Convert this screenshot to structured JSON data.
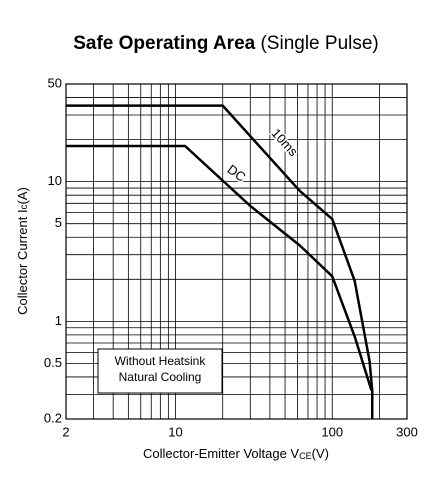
{
  "chart_data": {
    "type": "line",
    "title": "Safe Operating Area",
    "subtitle": "(Single Pulse)",
    "x_label": {
      "text": "Collector-Emitter Voltage V",
      "sub": "CE",
      "suffix": "(V)"
    },
    "y_label": {
      "text": "Collector Current I",
      "sub": "c",
      "suffix": "(A)"
    },
    "annotation": [
      "Without Heatsink",
      "Natural Cooling"
    ],
    "x_scale": "log",
    "y_scale": "log",
    "grid": true,
    "xlim": [
      2,
      300
    ],
    "ylim": [
      0.2,
      50
    ],
    "xticks": [
      2,
      10,
      100,
      300
    ],
    "yticks": [
      0.2,
      0.5,
      1,
      5,
      10,
      50
    ],
    "xgrid": [
      2,
      3,
      4,
      5,
      6,
      7,
      8,
      9,
      10,
      20,
      30,
      40,
      50,
      60,
      70,
      80,
      90,
      100,
      200,
      300
    ],
    "ygrid": [
      0.2,
      0.3,
      0.4,
      0.5,
      0.6,
      0.7,
      0.8,
      0.9,
      1,
      2,
      3,
      4,
      5,
      6,
      7,
      8,
      9,
      10,
      20,
      30,
      40,
      50
    ],
    "series": [
      {
        "name": "10ms",
        "color": "#000000",
        "x": [
          2,
          20,
          62,
          100,
          139,
          173,
          180,
          180
        ],
        "values": [
          35,
          35,
          8.6,
          5.4,
          1.95,
          0.52,
          0.32,
          0.2
        ]
      },
      {
        "name": "DC",
        "color": "#000000",
        "x": [
          2,
          11.5,
          30,
          62,
          100,
          139,
          178
        ],
        "values": [
          18,
          18,
          6.7,
          3.5,
          2.1,
          0.78,
          0.32
        ]
      }
    ]
  }
}
